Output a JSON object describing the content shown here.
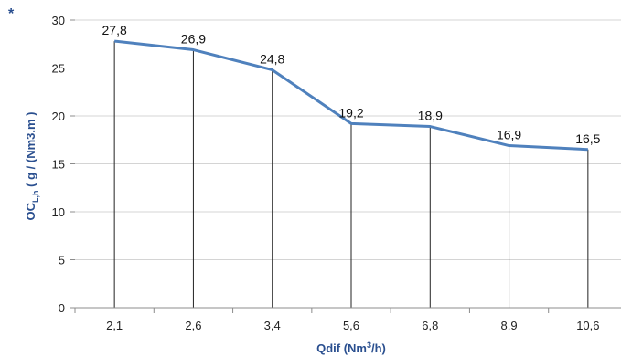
{
  "corner_mark": "*",
  "colors": {
    "series": "#4f81bd",
    "axis_title": "#2a4f8f",
    "droplines": "#222222",
    "gridlines": "#d4d4d4",
    "axis": "#8c8c8c"
  },
  "chart_data": {
    "type": "line",
    "title": "",
    "categories": [
      "2,1",
      "2,6",
      "3,4",
      "5,6",
      "6,8",
      "8,9",
      "10,6"
    ],
    "values": [
      27.8,
      26.9,
      24.8,
      19.2,
      18.9,
      16.9,
      16.5
    ],
    "data_labels": [
      "27,8",
      "26,9",
      "24,8",
      "19,2",
      "18,9",
      "16,9",
      "16,5"
    ],
    "ylim": [
      0,
      30
    ],
    "yticks": [
      0,
      5,
      10,
      15,
      20,
      25,
      30
    ],
    "ytick_labels": [
      "0",
      "5",
      "10",
      "15",
      "20",
      "25",
      "30"
    ],
    "xlabel": {
      "main": "Qdif (Nm",
      "sup": "3",
      "tail": "/h)"
    },
    "ylabel": {
      "main": "OC",
      "sub": "L,h",
      "tail": " ( g / (Nm3.m )"
    },
    "grid": true,
    "drop_lines": true
  }
}
